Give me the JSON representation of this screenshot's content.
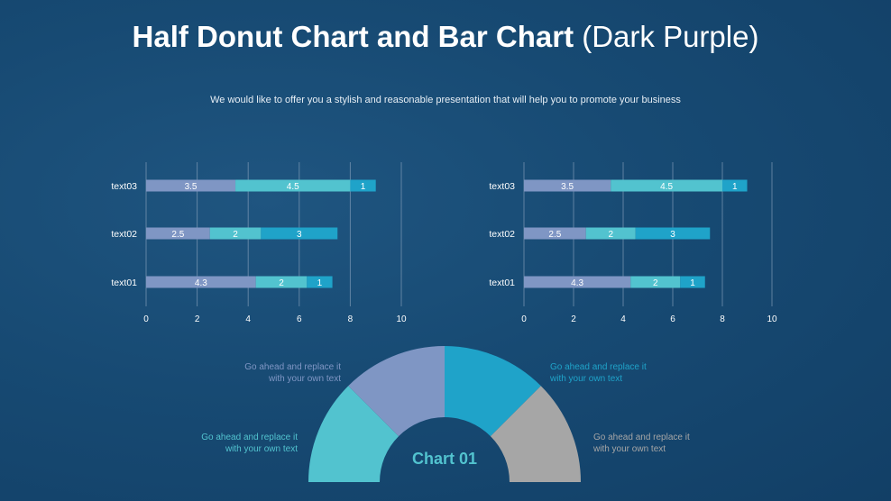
{
  "header": {
    "title_bold": "Half Donut Chart and Bar Chart",
    "title_light": "(Dark Purple)",
    "subtitle": "We would like to offer you a stylish and reasonable presentation that will help you to promote your business"
  },
  "colors": {
    "series1": "#7f96c4",
    "series2": "#52c3cf",
    "series3": "#1fa3c9",
    "gray": "#a6a6a6"
  },
  "chart_data": [
    {
      "type": "bar",
      "orientation": "horizontal",
      "stacked": true,
      "categories": [
        "text01",
        "text02",
        "text03"
      ],
      "series": [
        {
          "values": [
            4.3,
            2.5,
            3.5
          ]
        },
        {
          "values": [
            2,
            2,
            4.5
          ]
        },
        {
          "values": [
            1,
            3,
            1
          ]
        }
      ],
      "xlim": [
        0,
        10
      ],
      "xticks": [
        "0",
        "2",
        "4",
        "6",
        "8",
        "10"
      ],
      "grid": true
    },
    {
      "type": "bar",
      "orientation": "horizontal",
      "stacked": true,
      "categories": [
        "text01",
        "text02",
        "text03"
      ],
      "series": [
        {
          "values": [
            4.3,
            2.5,
            3.5
          ]
        },
        {
          "values": [
            2,
            2,
            4.5
          ]
        },
        {
          "values": [
            1,
            3,
            1
          ]
        }
      ],
      "xlim": [
        0,
        10
      ],
      "xticks": [
        "0",
        "2",
        "4",
        "6",
        "8",
        "10"
      ],
      "grid": true
    },
    {
      "type": "pie",
      "variant": "half-donut",
      "title": "Chart 01",
      "values": [
        25,
        25,
        25,
        25
      ],
      "slice_colors": [
        "#52c3cf",
        "#7f96c4",
        "#1fa3c9",
        "#a6a6a6"
      ]
    }
  ],
  "notes": [
    {
      "text": "Go ahead and replace it\nwith  your own text",
      "color": "#52c3cf"
    },
    {
      "text": "Go ahead and replace it\nwith  your own text",
      "color": "#7f96c4"
    },
    {
      "text": "Go ahead and replace it\nwith  your own text",
      "color": "#1fa3c9"
    },
    {
      "text": "Go ahead and replace it\nwith  your own text",
      "color": "#a6a6a6"
    }
  ]
}
